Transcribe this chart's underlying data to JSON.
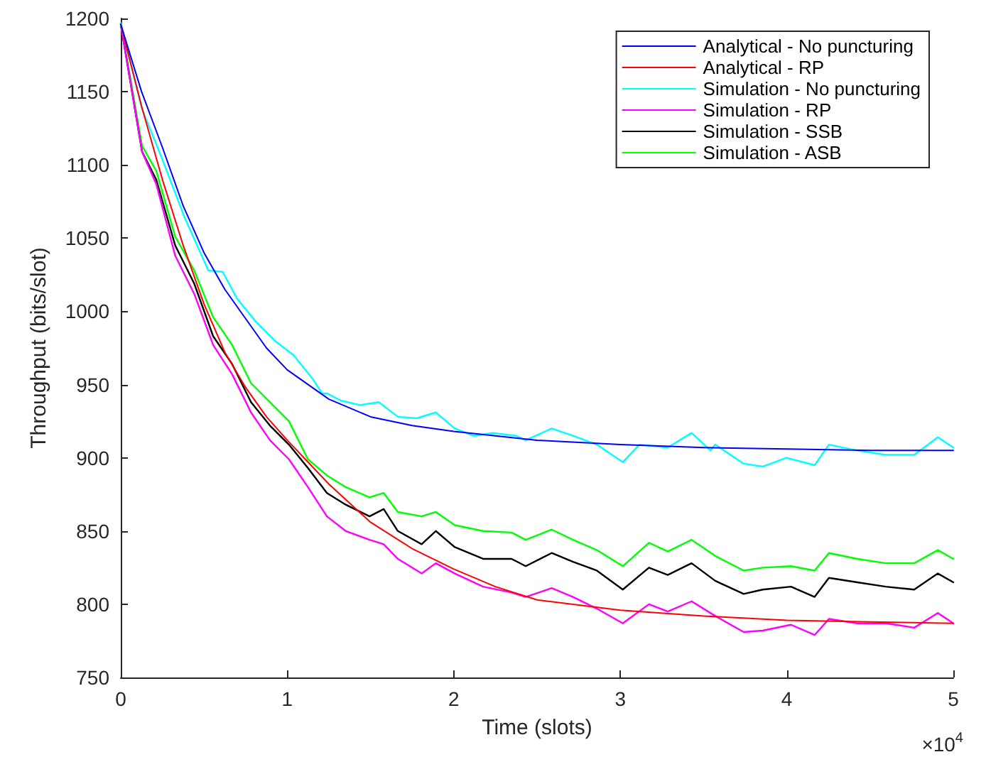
{
  "chart_data": {
    "type": "line",
    "xlabel": "Time (slots)",
    "ylabel": "Throughput (bits/slot)",
    "annotations": [
      "×10$^{4}$"
    ],
    "xlim": [
      0,
      5
    ],
    "xticks": [
      0,
      1,
      2,
      3,
      4,
      5
    ],
    "ylim": [
      750,
      1200
    ],
    "yticks": [
      750,
      800,
      850,
      900,
      950,
      1000,
      1050,
      1100,
      1150,
      1200
    ],
    "grid": false,
    "legend": "top right",
    "marker": "none",
    "line_style": "solid",
    "series": [
      {
        "name": "Analytical - No puncturing",
        "color": "#0000ff",
        "x": [
          0,
          0.125,
          0.25,
          0.375,
          0.5,
          0.625,
          0.75,
          0.875,
          1,
          1.25,
          1.5,
          1.75,
          2,
          2.5,
          3,
          3.5,
          4,
          4.5,
          5
        ],
        "values": [
          1196,
          1150,
          1112,
          1072,
          1040,
          1015,
          995,
          975,
          960,
          940,
          928,
          922,
          918,
          912,
          909,
          907,
          906,
          905,
          905
        ]
      },
      {
        "name": "Analytical - RP",
        "color": "#ff0000",
        "x": [
          0,
          0.125,
          0.25,
          0.375,
          0.5,
          0.625,
          0.75,
          0.875,
          1,
          1.25,
          1.5,
          1.75,
          2,
          2.25,
          2.5,
          3,
          3.5,
          4,
          4.5,
          5
        ],
        "values": [
          1196,
          1140,
          1090,
          1045,
          1005,
          972,
          948,
          928,
          912,
          882,
          856,
          838,
          824,
          812,
          803,
          796,
          792,
          789,
          788,
          787
        ]
      },
      {
        "name": "Simulation - No puncturing",
        "color": "#00ffff",
        "x": [
          0,
          0.128,
          0.242,
          0.384,
          0.526,
          0.612,
          0.697,
          0.811,
          0.925,
          1.038,
          1.152,
          1.209,
          1.238,
          1.323,
          1.437,
          1.55,
          1.664,
          1.778,
          1.892,
          2.006,
          2.119,
          2.233,
          2.375,
          2.432,
          2.588,
          2.716,
          2.859,
          3.015,
          3.115,
          3.285,
          3.428,
          3.542,
          3.57,
          3.741,
          3.855,
          3.997,
          4.167,
          4.253,
          4.423,
          4.594,
          4.765,
          4.907,
          5
        ],
        "values": [
          1197,
          1138,
          1106,
          1064,
          1028,
          1027,
          1009,
          993,
          980,
          970,
          954,
          944,
          944,
          939,
          936,
          938,
          928,
          927,
          931,
          920,
          915,
          917,
          915,
          912,
          920,
          915,
          909,
          897,
          909,
          907,
          917,
          905,
          909,
          896,
          894,
          900,
          895,
          909,
          905,
          902,
          902,
          914,
          907
        ]
      },
      {
        "name": "Simulation - RP",
        "color": "#ff00ff",
        "x": [
          0,
          0.128,
          0.213,
          0.327,
          0.441,
          0.555,
          0.669,
          0.782,
          0.896,
          1.01,
          1.124,
          1.238,
          1.351,
          1.494,
          1.579,
          1.664,
          1.807,
          1.892,
          2.006,
          2.176,
          2.347,
          2.432,
          2.588,
          2.716,
          2.859,
          3.015,
          3.172,
          3.285,
          3.428,
          3.57,
          3.741,
          3.855,
          4.025,
          4.167,
          4.253,
          4.423,
          4.594,
          4.765,
          4.907,
          5
        ],
        "values": [
          1196,
          1109,
          1087,
          1038,
          1012,
          977,
          957,
          931,
          912,
          899,
          880,
          860,
          850,
          844,
          841,
          831,
          821,
          828,
          821,
          812,
          808,
          805,
          811,
          805,
          797,
          787,
          800,
          795,
          802,
          792,
          781,
          782,
          786,
          779,
          790,
          787,
          787,
          784,
          794,
          787
        ]
      },
      {
        "name": "Simulation - SSB",
        "color": "#000000",
        "x": [
          0,
          0.128,
          0.213,
          0.327,
          0.441,
          0.555,
          0.669,
          0.782,
          0.896,
          1.01,
          1.124,
          1.238,
          1.351,
          1.494,
          1.579,
          1.664,
          1.807,
          1.892,
          2.006,
          2.176,
          2.347,
          2.432,
          2.588,
          2.716,
          2.859,
          3.015,
          3.172,
          3.285,
          3.428,
          3.57,
          3.741,
          3.855,
          4.025,
          4.167,
          4.253,
          4.423,
          4.594,
          4.765,
          4.907,
          5
        ],
        "values": [
          1196,
          1109,
          1090,
          1045,
          1019,
          983,
          964,
          938,
          922,
          909,
          893,
          876,
          868,
          860,
          865,
          850,
          841,
          850,
          839,
          831,
          831,
          826,
          835,
          829,
          823,
          810,
          825,
          820,
          828,
          816,
          807,
          810,
          812,
          805,
          818,
          815,
          812,
          810,
          821,
          815
        ]
      },
      {
        "name": "Simulation - ASB",
        "color": "#00ff00",
        "x": [
          0,
          0.128,
          0.213,
          0.327,
          0.441,
          0.555,
          0.669,
          0.782,
          0.896,
          1.01,
          1.124,
          1.238,
          1.351,
          1.494,
          1.579,
          1.664,
          1.807,
          1.892,
          2.006,
          2.176,
          2.347,
          2.432,
          2.588,
          2.716,
          2.859,
          3.015,
          3.172,
          3.285,
          3.428,
          3.57,
          3.741,
          3.855,
          4.025,
          4.167,
          4.253,
          4.423,
          4.594,
          4.765,
          4.907,
          5
        ],
        "values": [
          1197,
          1113,
          1096,
          1051,
          1028,
          996,
          977,
          951,
          938,
          925,
          899,
          888,
          880,
          873,
          876,
          863,
          860,
          863,
          854,
          850,
          849,
          844,
          851,
          844,
          837,
          826,
          842,
          836,
          844,
          833,
          823,
          825,
          826,
          823,
          835,
          831,
          828,
          828,
          837,
          831
        ]
      }
    ]
  }
}
